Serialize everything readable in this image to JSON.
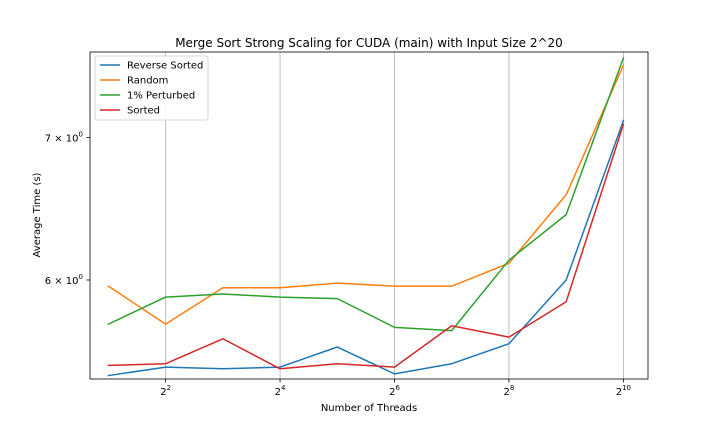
{
  "chart_data": {
    "type": "line",
    "title": "Merge Sort Strong Scaling for CUDA (main) with Input Size 2^20",
    "xlabel": "Number of Threads",
    "ylabel": "Average Time (s)",
    "x_scale": "log2",
    "y_scale": "log",
    "x": [
      2,
      4,
      8,
      16,
      32,
      64,
      128,
      256,
      512,
      1024
    ],
    "xlim": [
      1.6,
      1380
    ],
    "ylim": [
      5.39,
      7.68
    ],
    "x_ticks": [
      {
        "value": 4,
        "base": "2",
        "exp": "2"
      },
      {
        "value": 16,
        "base": "2",
        "exp": "4"
      },
      {
        "value": 64,
        "base": "2",
        "exp": "6"
      },
      {
        "value": 256,
        "base": "2",
        "exp": "8"
      },
      {
        "value": 1024,
        "base": "2",
        "exp": "10"
      }
    ],
    "y_ticks": [
      {
        "value": 6,
        "coef": "6",
        "times": "×",
        "base": "10",
        "exp": "0"
      },
      {
        "value": 7,
        "coef": "7",
        "times": "×",
        "base": "10",
        "exp": "0"
      }
    ],
    "grid": "vertical",
    "legend_position": "top-left",
    "series": [
      {
        "name": "Reverse Sorted",
        "color": "#1f77b4",
        "values": [
          5.41,
          5.46,
          5.45,
          5.46,
          5.58,
          5.42,
          5.48,
          5.6,
          6.0,
          7.13
        ]
      },
      {
        "name": "Random",
        "color": "#ff7f0e",
        "values": [
          5.96,
          5.72,
          5.95,
          5.95,
          5.98,
          5.96,
          5.96,
          6.11,
          6.58,
          7.57
        ]
      },
      {
        "name": "1% Perturbed",
        "color": "#2ca02c",
        "values": [
          5.72,
          5.89,
          5.91,
          5.89,
          5.88,
          5.7,
          5.68,
          6.13,
          6.44,
          7.63
        ]
      },
      {
        "name": "Sorted",
        "color": "#d62728",
        "values": [
          5.47,
          5.48,
          5.63,
          5.45,
          5.48,
          5.46,
          5.71,
          5.64,
          5.86,
          7.1
        ]
      }
    ]
  }
}
